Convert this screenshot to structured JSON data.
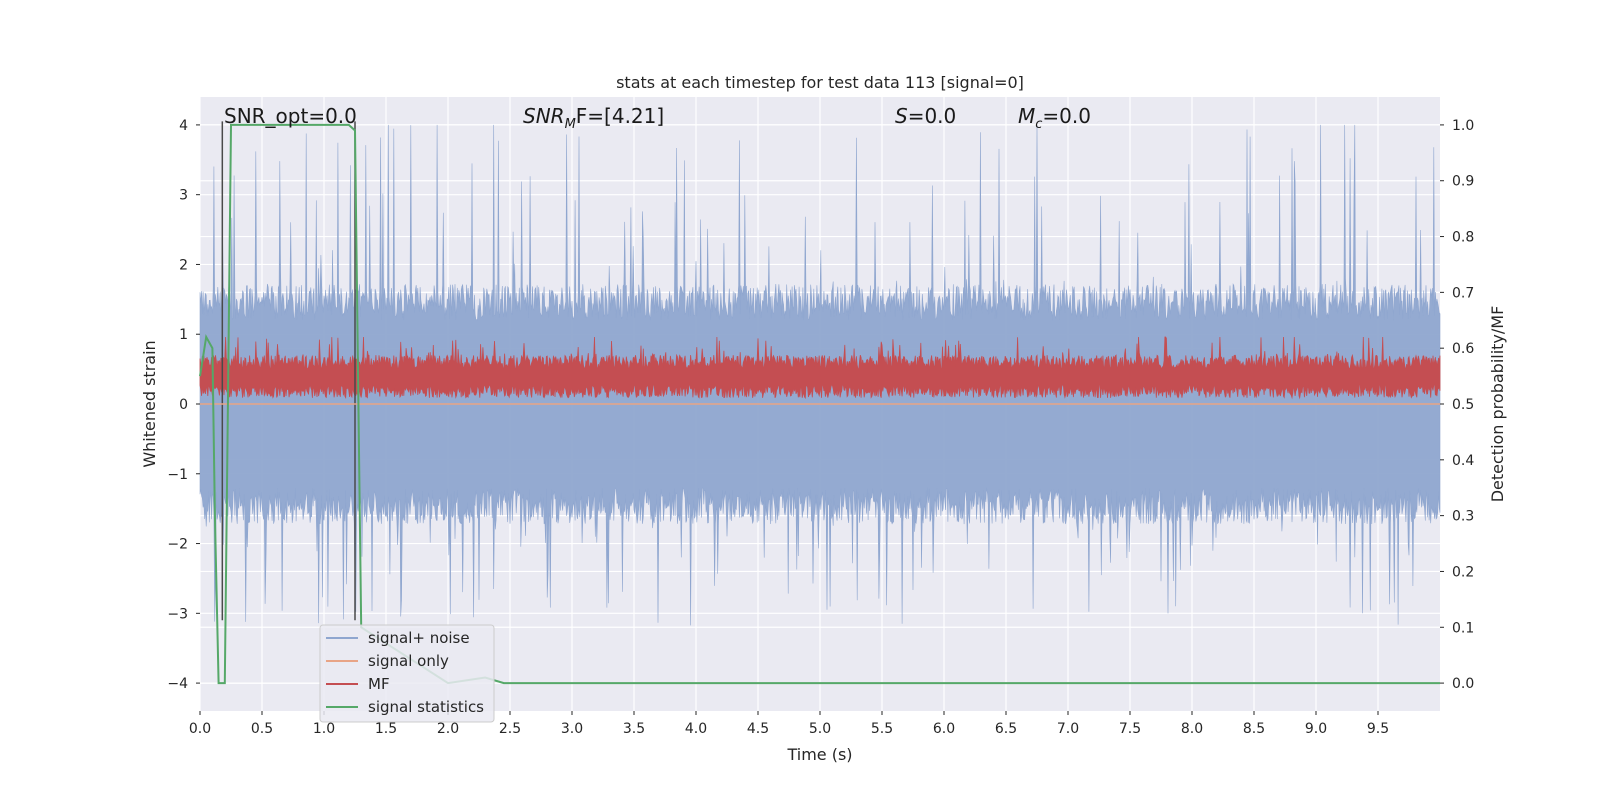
{
  "chart_data": {
    "type": "line",
    "title": "stats at each timestep for test data 113 [signal=0]",
    "xlabel": "Time (s)",
    "ylabel_left": "Whitened strain",
    "ylabel_right": "Detection probability/MF",
    "xlim": [
      0,
      10
    ],
    "ylim_left": [
      -4.4,
      4.4
    ],
    "ylim_right": [
      -0.05,
      1.05
    ],
    "x_ticks": [
      0.0,
      0.5,
      1.0,
      1.5,
      2.0,
      2.5,
      3.0,
      3.5,
      4.0,
      4.5,
      5.0,
      5.5,
      6.0,
      6.5,
      7.0,
      7.5,
      8.0,
      8.5,
      9.0,
      9.5
    ],
    "x_tick_labels": [
      "0.0",
      "0.5",
      "1.0",
      "1.5",
      "2.0",
      "2.5",
      "3.0",
      "3.5",
      "4.0",
      "4.5",
      "5.0",
      "5.5",
      "6.0",
      "6.5",
      "7.0",
      "7.5",
      "8.0",
      "8.5",
      "9.0",
      "9.5"
    ],
    "y_left_ticks": [
      -4,
      -3,
      -2,
      -1,
      0,
      1,
      2,
      3,
      4
    ],
    "y_left_tick_labels": [
      "−4",
      "−3",
      "−2",
      "−1",
      "0",
      "1",
      "2",
      "3",
      "4"
    ],
    "y_right_ticks": [
      0.0,
      0.1,
      0.2,
      0.3,
      0.4,
      0.5,
      0.6,
      0.7,
      0.8,
      0.9,
      1.0
    ],
    "y_right_tick_labels": [
      "0.0",
      "0.1",
      "0.2",
      "0.3",
      "0.4",
      "0.5",
      "0.6",
      "0.7",
      "0.8",
      "0.9",
      "1.0"
    ],
    "grid": true,
    "legend_position": "bottom-left",
    "annotations": [
      {
        "key": "snr_opt",
        "text": "SNR_opt=0.0"
      },
      {
        "key": "snr_mf",
        "text": "SNR",
        "sub": "M",
        "suffix": "F=[4.21]"
      },
      {
        "key": "s",
        "text": "S",
        "suffix": "=0.0"
      },
      {
        "key": "mc",
        "text": "M",
        "sub": "c",
        "suffix": "=0.0"
      }
    ],
    "series": [
      {
        "name": "signal+ noise",
        "color": "#8fa6cf",
        "axis": "left",
        "style": "noise",
        "spread": 1.6,
        "peak_max": 4.0
      },
      {
        "name": "signal only",
        "color": "#e8a486",
        "axis": "left",
        "style": "flat",
        "values_x": [
          0,
          10
        ],
        "values_y": [
          0,
          0
        ]
      },
      {
        "name": "MF",
        "color": "#c44e52",
        "axis": "right",
        "style": "band",
        "center": 0.55,
        "spread": 0.03,
        "peak_max": 0.62
      },
      {
        "name": "signal statistics",
        "color": "#55a868",
        "axis": "right",
        "style": "line",
        "x": [
          0.0,
          0.05,
          0.1,
          0.12,
          0.15,
          0.2,
          0.22,
          0.25,
          0.3,
          1.2,
          1.25,
          1.3,
          2.0,
          2.3,
          2.45,
          2.5,
          10.0
        ],
        "y": [
          0.55,
          0.62,
          0.6,
          0.3,
          0.0,
          0.0,
          0.4,
          1.0,
          1.0,
          1.0,
          0.99,
          0.1,
          0.0,
          0.01,
          0.0,
          0.0,
          0.0
        ]
      }
    ],
    "vertical_markers": {
      "color": "#4a4a4a",
      "x": [
        0.18,
        1.25
      ]
    }
  }
}
